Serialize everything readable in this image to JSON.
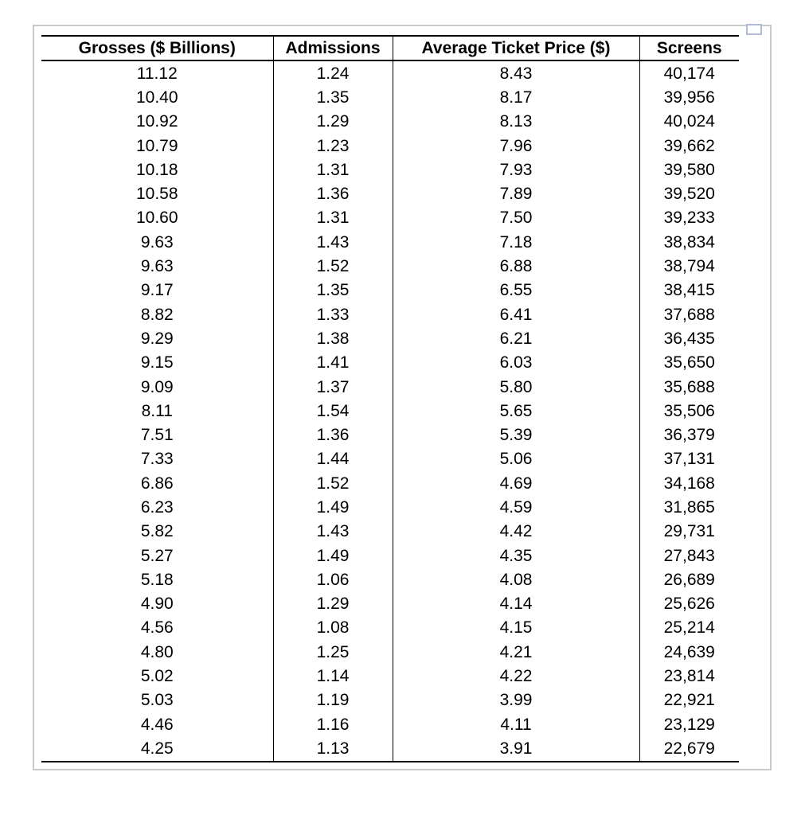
{
  "frame": {
    "border_color": "#c9c9c9",
    "handle_border_color": "#b2bada",
    "table_line_color": "#000000"
  },
  "chart_data": {
    "type": "table",
    "columns": [
      "Grosses ($ Billions)",
      "Admissions",
      "Average Ticket Price ($)",
      "Screens"
    ],
    "rows": [
      [
        "11.12",
        "1.24",
        "8.43",
        "40,174"
      ],
      [
        "10.40",
        "1.35",
        "8.17",
        "39,956"
      ],
      [
        "10.92",
        "1.29",
        "8.13",
        "40,024"
      ],
      [
        "10.79",
        "1.23",
        "7.96",
        "39,662"
      ],
      [
        "10.18",
        "1.31",
        "7.93",
        "39,580"
      ],
      [
        "10.58",
        "1.36",
        "7.89",
        "39,520"
      ],
      [
        "10.60",
        "1.31",
        "7.50",
        "39,233"
      ],
      [
        "9.63",
        "1.43",
        "7.18",
        "38,834"
      ],
      [
        "9.63",
        "1.52",
        "6.88",
        "38,794"
      ],
      [
        "9.17",
        "1.35",
        "6.55",
        "38,415"
      ],
      [
        "8.82",
        "1.33",
        "6.41",
        "37,688"
      ],
      [
        "9.29",
        "1.38",
        "6.21",
        "36,435"
      ],
      [
        "9.15",
        "1.41",
        "6.03",
        "35,650"
      ],
      [
        "9.09",
        "1.37",
        "5.80",
        "35,688"
      ],
      [
        "8.11",
        "1.54",
        "5.65",
        "35,506"
      ],
      [
        "7.51",
        "1.36",
        "5.39",
        "36,379"
      ],
      [
        "7.33",
        "1.44",
        "5.06",
        "37,131"
      ],
      [
        "6.86",
        "1.52",
        "4.69",
        "34,168"
      ],
      [
        "6.23",
        "1.49",
        "4.59",
        "31,865"
      ],
      [
        "5.82",
        "1.43",
        "4.42",
        "29,731"
      ],
      [
        "5.27",
        "1.49",
        "4.35",
        "27,843"
      ],
      [
        "5.18",
        "1.06",
        "4.08",
        "26,689"
      ],
      [
        "4.90",
        "1.29",
        "4.14",
        "25,626"
      ],
      [
        "4.56",
        "1.08",
        "4.15",
        "25,214"
      ],
      [
        "4.80",
        "1.25",
        "4.21",
        "24,639"
      ],
      [
        "5.02",
        "1.14",
        "4.22",
        "23,814"
      ],
      [
        "5.03",
        "1.19",
        "3.99",
        "22,921"
      ],
      [
        "4.46",
        "1.16",
        "4.11",
        "23,129"
      ],
      [
        "4.25",
        "1.13",
        "3.91",
        "22,679"
      ]
    ]
  }
}
